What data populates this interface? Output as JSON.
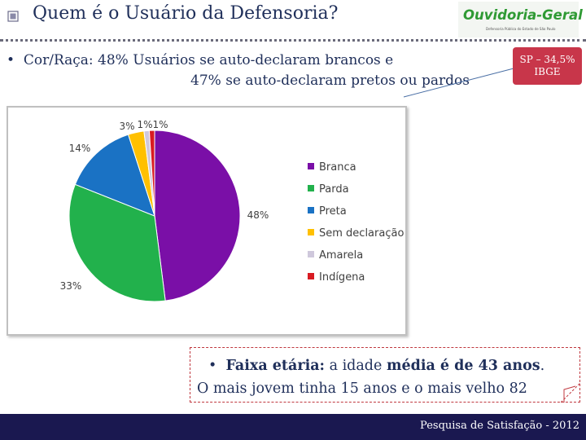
{
  "header": {
    "title": "Quem é o Usuário da Defensoria?",
    "logo_text": "Ouvidoria-Geral",
    "logo_subtext": "Defensoria Pública do Estado de São Paulo"
  },
  "race": {
    "bullet": "•",
    "line1": "Cor/Raça: 48% Usuários se auto-declaram brancos e",
    "line2": "47% se auto-declaram pretos ou pardos"
  },
  "callout": {
    "line1": "SP – 34,5%",
    "line2": "IBGE",
    "color": "#c8364a"
  },
  "chart_data": {
    "type": "pie",
    "title": "",
    "categories": [
      "Branca",
      "Parda",
      "Preta",
      "Sem declaração",
      "Amarela",
      "Indígena"
    ],
    "values": [
      48,
      33,
      14,
      3,
      1,
      1
    ],
    "labels": [
      "48%",
      "33%",
      "14%",
      "3%",
      "1%",
      "1%"
    ],
    "colors": [
      "#7a0fa7",
      "#22b14c",
      "#1a72c4",
      "#ffc000",
      "#cfc8dc",
      "#d81b22"
    ],
    "legend": "right"
  },
  "age": {
    "bullet": "•",
    "label": "Faixa etária:",
    "text_plain1": " a idade ",
    "text_bold1": "média é de 43 anos",
    "text_end": ".",
    "line2": "O mais jovem tinha 15 anos e o mais velho 82"
  },
  "footer": {
    "text": "Pesquisa de Satisfação - 2012",
    "color": "#1a1850"
  }
}
